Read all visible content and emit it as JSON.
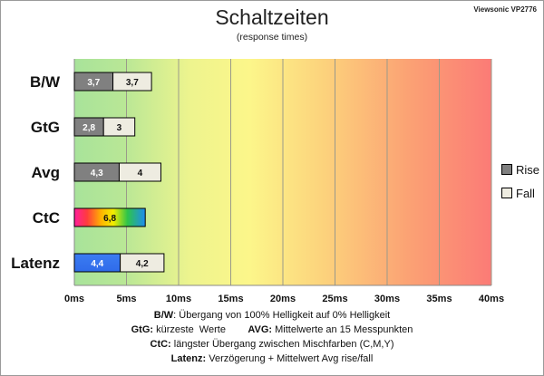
{
  "page": {
    "title": "Schaltzeiten",
    "subtitle": "(response times)",
    "model": "Viewsonic VP2776"
  },
  "legend": {
    "rise_label": "Rise",
    "fall_label": "Fall",
    "rise_color": "#808080",
    "fall_color": "#eeece1"
  },
  "notes": [
    [
      {
        "b": "B/W",
        "t": ":  Übergang von 100% Helligkeit auf 0% Helligkeit"
      }
    ],
    [
      {
        "b": "GtG:",
        "t": " kürzeste  Werte        "
      },
      {
        "b": "AVG:",
        "t": " Mittelwerte  an 15 Messpunkten"
      }
    ],
    [
      {
        "b": "CtC:",
        "t": " längster Übergang  zwischen Mischfarben  (C,M,Y)"
      }
    ],
    [
      {
        "b": "Latenz:",
        "t": " Verzögerung  + Mittelwert Avg rise/fall"
      }
    ]
  ],
  "chart_data": {
    "type": "bar",
    "orientation": "horizontal",
    "stacked": true,
    "categories": [
      "B/W",
      "GtG",
      "Avg",
      "CtC",
      "Latenz"
    ],
    "series": [
      {
        "name": "Rise",
        "values": [
          3.7,
          2.8,
          4.3,
          6.8,
          4.4
        ],
        "labels": [
          "3,7",
          "2,8",
          "4,3",
          "6,8",
          "4,4"
        ]
      },
      {
        "name": "Fall",
        "values": [
          3.7,
          3,
          4,
          null,
          4.2
        ],
        "labels": [
          "3,7",
          "3",
          "4",
          "",
          "4,2"
        ]
      }
    ],
    "bar_styles": [
      "gray",
      "gray",
      "gray",
      "rainbow",
      "blue"
    ],
    "x_ticks": [
      "0ms",
      "5ms",
      "10ms",
      "15ms",
      "20ms",
      "25ms",
      "30ms",
      "35ms",
      "40ms"
    ],
    "xlim": [
      0,
      40
    ],
    "grid": true,
    "background": "gradient green-yellow-red",
    "legend_position": "right"
  }
}
